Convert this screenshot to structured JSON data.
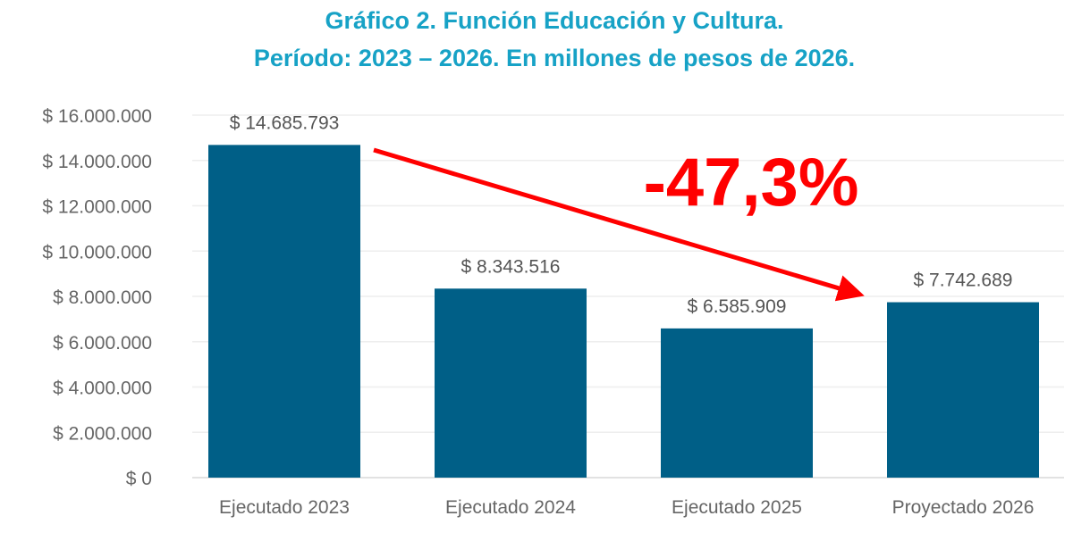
{
  "chart_data": {
    "type": "bar",
    "title": "Gráfico 2. Función Educación y Cultura.",
    "subtitle": "Período: 2023 – 2026. En millones de pesos de 2026.",
    "categories": [
      "Ejecutado 2023",
      "Ejecutado 2024",
      "Ejecutado 2025",
      "Proyectado 2026"
    ],
    "values": [
      14685793,
      8343516,
      6585909,
      7742689
    ],
    "data_labels": [
      "$ 14.685.793",
      "$ 8.343.516",
      "$ 6.585.909",
      "$ 7.742.689"
    ],
    "ylim": [
      0,
      16000000
    ],
    "yticks": [
      0,
      2000000,
      4000000,
      6000000,
      8000000,
      10000000,
      12000000,
      14000000,
      16000000
    ],
    "ytick_labels": [
      "$ 0",
      "$ 2.000.000",
      "$ 4.000.000",
      "$ 6.000.000",
      "$ 8.000.000",
      "$ 10.000.000",
      "$ 12.000.000",
      "$ 14.000.000",
      "$ 16.000.000"
    ],
    "grid": true,
    "xlabel": "",
    "ylabel": "",
    "annotation": {
      "text": "-47,3%",
      "arrow_from": "Ejecutado 2023",
      "arrow_to": "Proyectado 2026"
    },
    "colors": {
      "bar": "#005f87",
      "title": "#17a2c6",
      "annotation": "#ff0000",
      "grid": "#eeeeee"
    }
  }
}
